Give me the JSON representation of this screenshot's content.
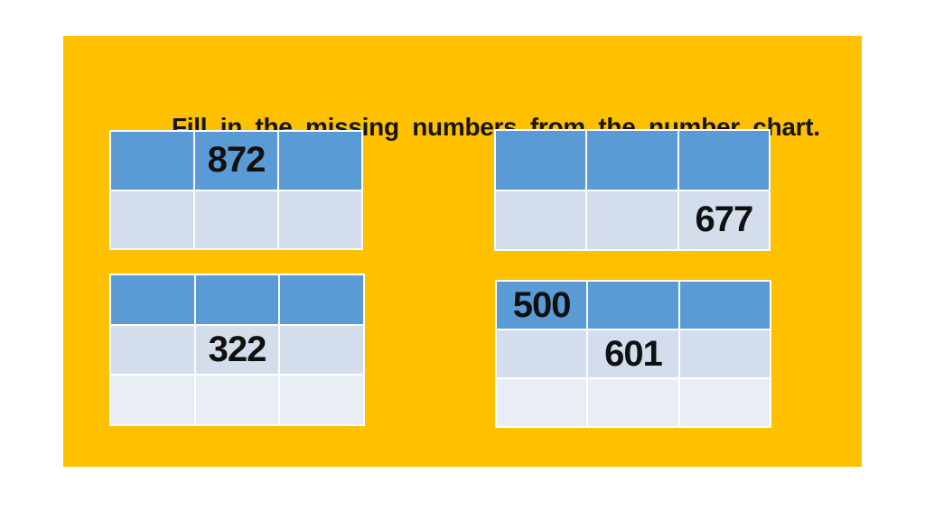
{
  "slide": {
    "title": "Fill in the missing numbers from the number chart.",
    "colors": {
      "slide_background": "#FFC000",
      "page_background": "#FFFFFF",
      "table_header_blue": "#5B9BD5",
      "table_band_light": "#D3DDEC",
      "table_band_lighter": "#E9EEF6",
      "gridline_white": "#FFFFFF",
      "text_black": "#151515"
    }
  },
  "tables": [
    {
      "id": "top-left",
      "rows": [
        [
          "",
          "872",
          ""
        ],
        [
          "",
          "",
          ""
        ]
      ]
    },
    {
      "id": "top-right",
      "rows": [
        [
          "",
          "",
          ""
        ],
        [
          "",
          "",
          "677"
        ]
      ]
    },
    {
      "id": "bottom-left",
      "rows": [
        [
          "",
          "",
          ""
        ],
        [
          "",
          "322",
          ""
        ],
        [
          "",
          "",
          ""
        ]
      ]
    },
    {
      "id": "bottom-right",
      "rows": [
        [
          "500",
          "",
          ""
        ],
        [
          "",
          "601",
          ""
        ],
        [
          "",
          "",
          ""
        ]
      ]
    }
  ]
}
